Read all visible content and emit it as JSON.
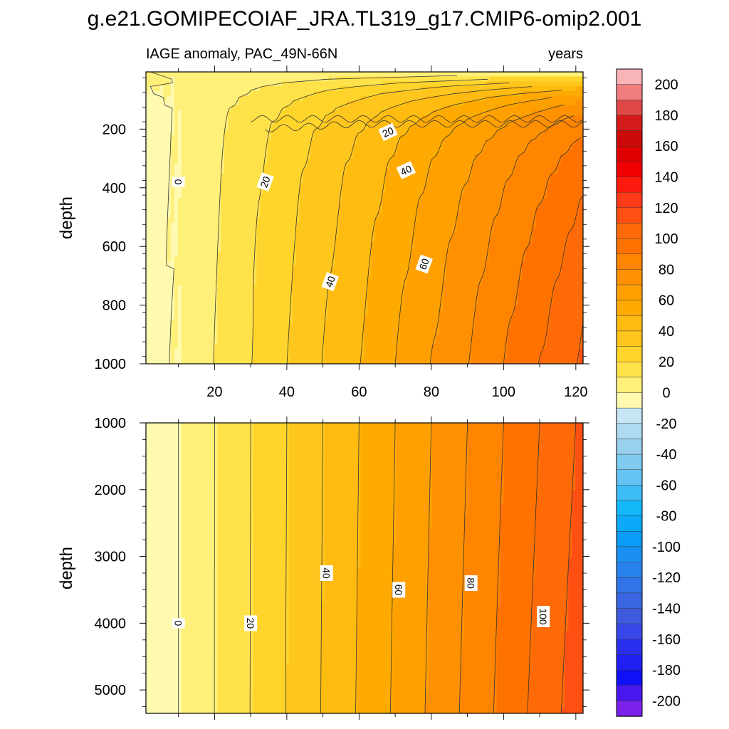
{
  "title": "g.e21.GOMIPECOIAF_JRA.TL319_g17.CMIP6-omip2.001",
  "chart_data": [
    {
      "type": "contour",
      "panel": "upper",
      "left_label": "IAGE anomaly, PAC_49N-66N",
      "right_label": "years",
      "ylabel": "depth",
      "xlim": [
        1,
        122
      ],
      "ylim": [
        1000,
        5
      ],
      "y_reversed": true,
      "xticks": [
        20,
        40,
        60,
        80,
        100,
        120
      ],
      "yticks": [
        200,
        400,
        600,
        800,
        1000
      ],
      "contour_interval": 10,
      "contour_labels": [
        {
          "text": "0",
          "x": 10,
          "y": 380
        },
        {
          "text": "20",
          "x": 34,
          "y": 380
        },
        {
          "text": "20",
          "x": 68,
          "y": 210
        },
        {
          "text": "40",
          "x": 73,
          "y": 340
        },
        {
          "text": "40",
          "x": 52,
          "y": 720
        },
        {
          "text": "60",
          "x": 78,
          "y": 660
        }
      ]
    },
    {
      "type": "contour",
      "panel": "lower",
      "ylabel": "depth",
      "xlim": [
        1,
        122
      ],
      "ylim": [
        5350,
        1000
      ],
      "y_reversed": true,
      "yticks": [
        1000,
        2000,
        3000,
        4000,
        5000
      ],
      "contour_interval": 10,
      "contour_labels": [
        {
          "text": "0",
          "x": 10,
          "y": 4000
        },
        {
          "text": "20",
          "x": 30,
          "y": 4000
        },
        {
          "text": "40",
          "x": 51,
          "y": 3250
        },
        {
          "text": "60",
          "x": 71,
          "y": 3500
        },
        {
          "text": "80",
          "x": 91,
          "y": 3400
        },
        {
          "text": "100",
          "x": 111,
          "y": 3900
        }
      ]
    }
  ],
  "colorbar": {
    "tick_labels": [
      "200",
      "180",
      "160",
      "140",
      "120",
      "100",
      "80",
      "60",
      "40",
      "20",
      "0",
      "-20",
      "-40",
      "-60",
      "-80",
      "-100",
      "-120",
      "-140",
      "-160",
      "-180",
      "-200"
    ],
    "colors_top_to_bottom": [
      "#f9b4b8",
      "#f07e7e",
      "#e04848",
      "#d41a1a",
      "#cc0a0a",
      "#e10000",
      "#f00000",
      "#ff1a10",
      "#ff3a18",
      "#ff5014",
      "#ff6a08",
      "#ff7200",
      "#ff8400",
      "#ff9000",
      "#ffa000",
      "#ffaa00",
      "#ffbb10",
      "#ffc61e",
      "#ffd52c",
      "#ffe24a",
      "#fff07a",
      "#fffab0",
      "#c6e6f6",
      "#aedaf2",
      "#98d0ee",
      "#80cbf0",
      "#66c4f4",
      "#3dbdf5",
      "#12b8f8",
      "#0aaaf8",
      "#0a9cf6",
      "#1a90f2",
      "#2882ee",
      "#3274e8",
      "#3a66e2",
      "#3f5adc",
      "#3848e8",
      "#2a30ee",
      "#2020f2",
      "#1010f6",
      "#4818ee",
      "#7a22ea"
    ]
  }
}
